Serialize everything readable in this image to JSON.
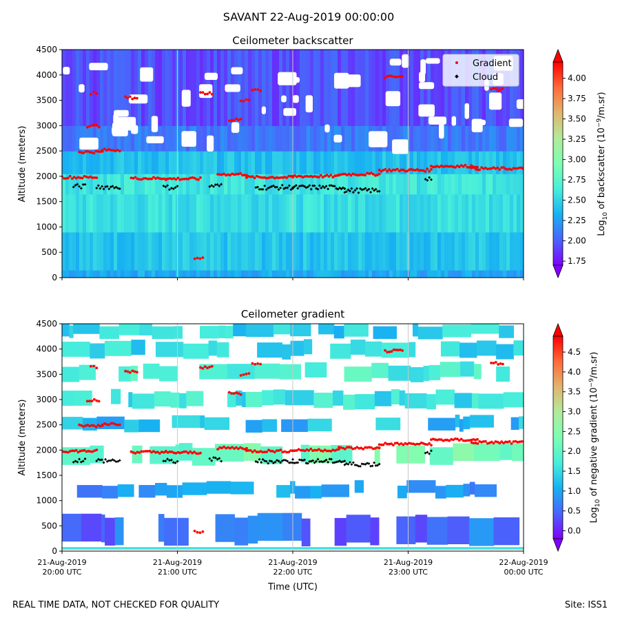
{
  "figure": {
    "suptitle": "SAVANT 22-Aug-2019 00:00:00",
    "footer_left": "REAL TIME DATA, NOT CHECKED FOR QUALITY",
    "footer_right": "Site: ISS1",
    "colors": {
      "cmap": [
        "#8000ff",
        "#4a64fb",
        "#18b1f2",
        "#48eedb",
        "#7efeb2",
        "#b1eb9b",
        "#e2b56f",
        "#ff6a3a",
        "#ff0000"
      ],
      "gradient_marker": "#ff0000",
      "cloud_marker": "#000000",
      "vgrid": "#c8c8c8"
    }
  },
  "chart_data": [
    {
      "type": "heatmap",
      "title": "Ceilometer backscatter",
      "ylabel": "Altitude (meters)",
      "ylim": [
        0,
        4500
      ],
      "yticks": [
        "0",
        "500",
        "1000",
        "1500",
        "2000",
        "2500",
        "3000",
        "3500",
        "4000",
        "4500"
      ],
      "colorbar": {
        "label_prefix": "Log",
        "label_sub": "10",
        "label_mid": " of backscatter (10",
        "label_sup": "−9",
        "label_suffix": "/m.sr)",
        "range": [
          1.7,
          4.2
        ],
        "ticks": [
          "1.75",
          "2.00",
          "2.25",
          "2.50",
          "2.75",
          "3.00",
          "3.25",
          "3.50",
          "3.75",
          "4.00"
        ],
        "extend": "both"
      },
      "legend": {
        "placement": "top-right",
        "entries": [
          "Gradient",
          "Cloud"
        ]
      },
      "layers": [
        {
          "y0": 0,
          "y1": 150,
          "value": 2.3
        },
        {
          "y0": 150,
          "y1": 900,
          "value": 2.42
        },
        {
          "y0": 900,
          "y1": 1650,
          "value": 2.55
        },
        {
          "y0": 1650,
          "y1": 2050,
          "value": 2.6
        },
        {
          "y0": 2050,
          "y1": 2500,
          "value": 2.4
        },
        {
          "y0": 2500,
          "y1": 3000,
          "value": 2.1
        },
        {
          "y0": 3000,
          "y1": 4500,
          "value": 1.95
        }
      ]
    },
    {
      "type": "heatmap",
      "title": "Ceilometer gradient",
      "ylabel": "Altitude (meters)",
      "xlabel": "Time (UTC)",
      "ylim": [
        0,
        4500
      ],
      "yticks": [
        "0",
        "500",
        "1000",
        "1500",
        "2000",
        "2500",
        "3000",
        "3500",
        "4000",
        "4500"
      ],
      "xticks": [
        {
          "date": "21-Aug-2019",
          "time": "20:00 UTC"
        },
        {
          "date": "21-Aug-2019",
          "time": "21:00 UTC"
        },
        {
          "date": "21-Aug-2019",
          "time": "22:00 UTC"
        },
        {
          "date": "21-Aug-2019",
          "time": "23:00 UTC"
        },
        {
          "date": "22-Aug-2019",
          "time": "00:00 UTC"
        }
      ],
      "colorbar": {
        "label_prefix": "Log",
        "label_sub": "10",
        "label_mid": " of negative gradient (10",
        "label_sup": "−9",
        "label_suffix": "/m.sr)",
        "range": [
          -0.2,
          4.9
        ],
        "ticks": [
          "0.0",
          "0.5",
          "1.0",
          "1.5",
          "2.0",
          "2.5",
          "3.0",
          "3.5",
          "4.0",
          "4.5"
        ],
        "extend": "both"
      },
      "bands": [
        {
          "y0": 150,
          "y1": 700,
          "value": 0.55
        },
        {
          "y0": 1100,
          "y1": 1350,
          "value": 0.9
        },
        {
          "y0": 1750,
          "y1": 2100,
          "value": 2.2
        },
        {
          "y0": 2400,
          "y1": 2650,
          "value": 1.2
        },
        {
          "y0": 2850,
          "y1": 3150,
          "value": 1.6
        },
        {
          "y0": 3400,
          "y1": 3700,
          "value": 1.8
        },
        {
          "y0": 3850,
          "y1": 4150,
          "value": 1.5
        },
        {
          "y0": 4250,
          "y1": 4500,
          "value": 1.4
        }
      ],
      "x_domain_hours": [
        0,
        4
      ],
      "gradient_points": [
        {
          "x": [
            0.0,
            0.3
          ],
          "y": 1980
        },
        {
          "x": [
            0.15,
            0.35
          ],
          "y": 2480
        },
        {
          "x": [
            0.35,
            0.5
          ],
          "y": 2520
        },
        {
          "x": [
            0.22,
            0.32
          ],
          "y": 2990
        },
        {
          "x": [
            0.25,
            0.3
          ],
          "y": 3640
        },
        {
          "x": [
            0.55,
            0.65
          ],
          "y": 3550
        },
        {
          "x": [
            0.6,
            0.9
          ],
          "y": 1960
        },
        {
          "x": [
            0.9,
            1.2
          ],
          "y": 1950
        },
        {
          "x": [
            1.35,
            1.6
          ],
          "y": 2040
        },
        {
          "x": [
            1.6,
            2.0
          ],
          "y": 1980
        },
        {
          "x": [
            2.0,
            2.4
          ],
          "y": 2000
        },
        {
          "x": [
            2.4,
            2.75
          ],
          "y": 2040
        },
        {
          "x": [
            2.75,
            3.2
          ],
          "y": 2120
        },
        {
          "x": [
            3.2,
            3.6
          ],
          "y": 2200
        },
        {
          "x": [
            3.55,
            4.0
          ],
          "y": 2150
        },
        {
          "x": [
            2.8,
            2.95
          ],
          "y": 3960
        },
        {
          "x": [
            1.65,
            1.72
          ],
          "y": 3700
        },
        {
          "x": [
            1.45,
            1.55
          ],
          "y": 3120
        },
        {
          "x": [
            1.2,
            1.3
          ],
          "y": 3640
        },
        {
          "x": [
            3.72,
            3.82
          ],
          "y": 3720
        },
        {
          "x": [
            1.15,
            1.22
          ],
          "y": 380
        },
        {
          "x": [
            1.55,
            1.62
          ],
          "y": 3500
        }
      ],
      "cloud_points": [
        {
          "x": [
            0.1,
            0.2
          ],
          "y": 1800
        },
        {
          "x": [
            0.3,
            0.5
          ],
          "y": 1790
        },
        {
          "x": [
            0.88,
            1.0
          ],
          "y": 1780
        },
        {
          "x": [
            1.28,
            1.38
          ],
          "y": 1810
        },
        {
          "x": [
            1.68,
            2.0
          ],
          "y": 1780
        },
        {
          "x": [
            2.0,
            2.45
          ],
          "y": 1780
        },
        {
          "x": [
            2.45,
            2.75
          ],
          "y": 1720
        },
        {
          "x": [
            3.15,
            3.2
          ],
          "y": 1960
        }
      ]
    }
  ]
}
